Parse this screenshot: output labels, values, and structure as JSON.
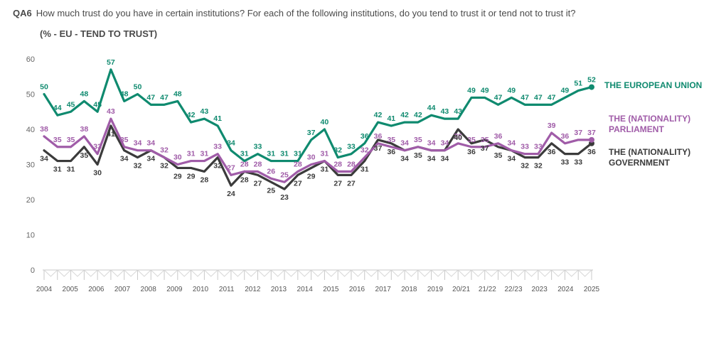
{
  "header": {
    "code": "QA6",
    "question": "How much trust do you have in certain institutions? For each of the following institutions, do you tend to trust it or tend not to trust it?",
    "subtitle": "(% - EU - TEND TO TRUST)"
  },
  "colors": {
    "eu": "#0f8a6f",
    "parliament": "#a05ca8",
    "government": "#3b3b3b",
    "axis": "#c8c8c8"
  },
  "chart_data": {
    "type": "line",
    "ylim": [
      0,
      60
    ],
    "yticks": [
      0,
      10,
      20,
      30,
      40,
      50,
      60
    ],
    "grid": false,
    "legend": "right",
    "x_labels": [
      "2004",
      "2005",
      "2006",
      "2007",
      "2008",
      "2009",
      "2010",
      "2011",
      "2012",
      "2013",
      "2014",
      "2015",
      "2016",
      "2017",
      "2018",
      "2019",
      "20/21",
      "21/22",
      "22/23",
      "2023",
      "2024",
      "2025"
    ],
    "series": [
      {
        "name": "THE EUROPEAN UNION",
        "legend": [
          "THE EUROPEAN UNION"
        ],
        "values": [
          50,
          44,
          45,
          48,
          45,
          57,
          48,
          50,
          47,
          47,
          48,
          42,
          43,
          41,
          34,
          31,
          33,
          31,
          31,
          31,
          37,
          40,
          32,
          33,
          36,
          42,
          41,
          42,
          42,
          44,
          43,
          43,
          49,
          49,
          47,
          49,
          47,
          47,
          47,
          49,
          51,
          52
        ]
      },
      {
        "name": "THE (NATIONALITY) PARLIAMENT",
        "legend": [
          "THE (NATIONALITY)",
          "PARLIAMENT"
        ],
        "values": [
          38,
          35,
          35,
          38,
          33,
          43,
          35,
          34,
          34,
          32,
          30,
          31,
          31,
          33,
          27,
          28,
          28,
          26,
          25,
          28,
          30,
          31,
          28,
          28,
          32,
          36,
          35,
          34,
          35,
          34,
          34,
          36,
          35,
          35,
          36,
          34,
          33,
          33,
          39,
          36,
          37,
          37
        ]
      },
      {
        "name": "THE (NATIONALITY) GOVERNMENT",
        "legend": [
          "THE (NATIONALITY)",
          "GOVERNMENT"
        ],
        "values": [
          34,
          31,
          31,
          35,
          30,
          41,
          34,
          32,
          34,
          32,
          29,
          29,
          28,
          32,
          24,
          28,
          27,
          25,
          23,
          27,
          29,
          31,
          27,
          27,
          31,
          37,
          36,
          34,
          35,
          34,
          34,
          40,
          36,
          37,
          35,
          34,
          32,
          32,
          36,
          33,
          33,
          36
        ]
      }
    ]
  }
}
